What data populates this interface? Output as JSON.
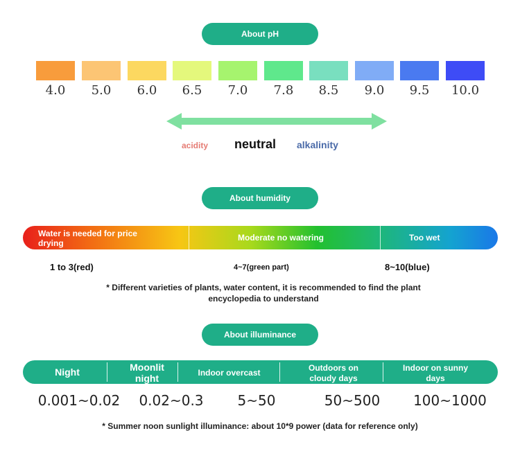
{
  "ph": {
    "title": "About pH",
    "scale": [
      {
        "value": "4.0",
        "color": "#f89c3c"
      },
      {
        "value": "5.0",
        "color": "#fcc574"
      },
      {
        "value": "6.0",
        "color": "#fcd860"
      },
      {
        "value": "6.5",
        "color": "#e4f87c"
      },
      {
        "value": "7.0",
        "color": "#a6f46e"
      },
      {
        "value": "7.8",
        "color": "#5fe88c"
      },
      {
        "value": "8.5",
        "color": "#79dfbf"
      },
      {
        "value": "9.0",
        "color": "#80acf6"
      },
      {
        "value": "9.5",
        "color": "#4a7af0"
      },
      {
        "value": "10.0",
        "color": "#3e4cf6"
      }
    ],
    "acidity_label": "acidity",
    "neutral_label": "neutral",
    "alkalinity_label": "alkalinity",
    "colors": {
      "acidity": "#e57b73",
      "neutral": "#111111",
      "alkalinity": "#4a6aa8",
      "arrow": "#7fe0a0"
    }
  },
  "humidity": {
    "title": "About humidity",
    "segments": [
      "Water is needed for price drying",
      "Moderate no watering",
      "Too wet"
    ],
    "values": [
      "1 to 3(red)",
      "4~7(green part)",
      "8~10(blue)"
    ],
    "note": "* Different varieties of plants, water content, it is recommended to find the plant encyclopedia to understand"
  },
  "illuminance": {
    "title": "About illuminance",
    "segments": [
      "Night",
      "Moonlit night",
      "Indoor overcast",
      "Outdoors on cloudy days",
      "Indoor on sunny days"
    ],
    "values": [
      "0.001~0.02",
      "0.02~0.3",
      "5~50",
      "50~500",
      "100~1000"
    ],
    "note": "* Summer noon sunlight illuminance: about 10*9 power (data for reference only)"
  }
}
